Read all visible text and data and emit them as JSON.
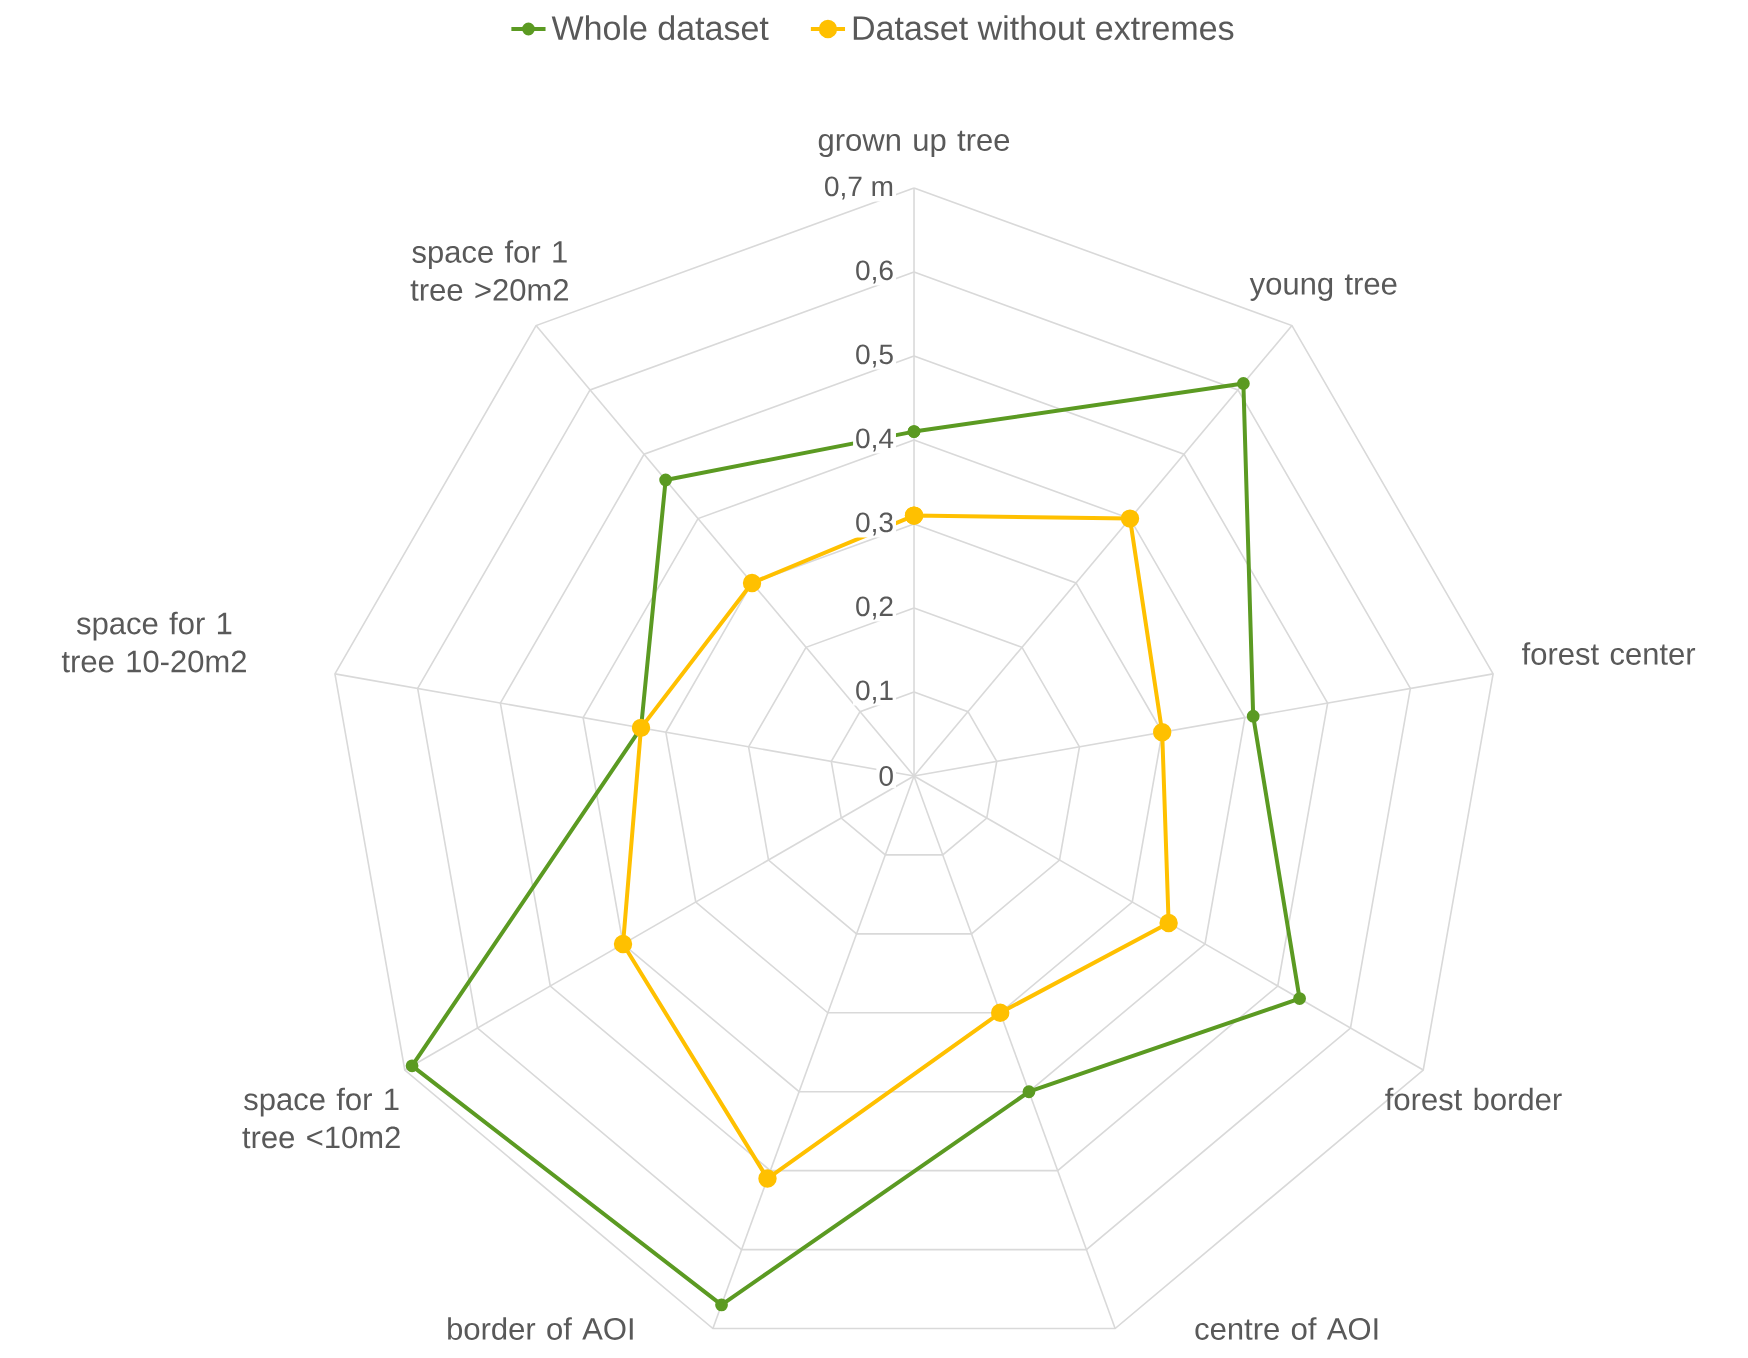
{
  "chart_data": {
    "type": "radar",
    "categories": [
      "grown up tree",
      "young tree",
      "forest center",
      "forest border",
      "centre of AOI",
      "border of AOI",
      "space for 1 tree <10m2",
      "space for 1 tree 10-20m2",
      "space for 1 tree >20m2"
    ],
    "series": [
      {
        "name": "Whole dataset",
        "color": "#5b9a22",
        "values": [
          0.41,
          0.61,
          0.41,
          0.53,
          0.4,
          0.67,
          0.69,
          0.33,
          0.46
        ]
      },
      {
        "name": "Dataset without extremes",
        "color": "#ffc000",
        "values": [
          0.31,
          0.4,
          0.3,
          0.35,
          0.3,
          0.51,
          0.4,
          0.33,
          0.3
        ]
      }
    ],
    "ylim": [
      0,
      0.7
    ],
    "yticks": [
      {
        "value": 0,
        "label": "0"
      },
      {
        "value": 0.1,
        "label": "0,1"
      },
      {
        "value": 0.2,
        "label": "0,2"
      },
      {
        "value": 0.3,
        "label": "0,3"
      },
      {
        "value": 0.4,
        "label": "0,4"
      },
      {
        "value": 0.5,
        "label": "0,5"
      },
      {
        "value": 0.6,
        "label": "0,6"
      },
      {
        "value": 0.7,
        "label": "0,7 m"
      }
    ],
    "grid": true,
    "legend": "top",
    "marker": "circle"
  }
}
